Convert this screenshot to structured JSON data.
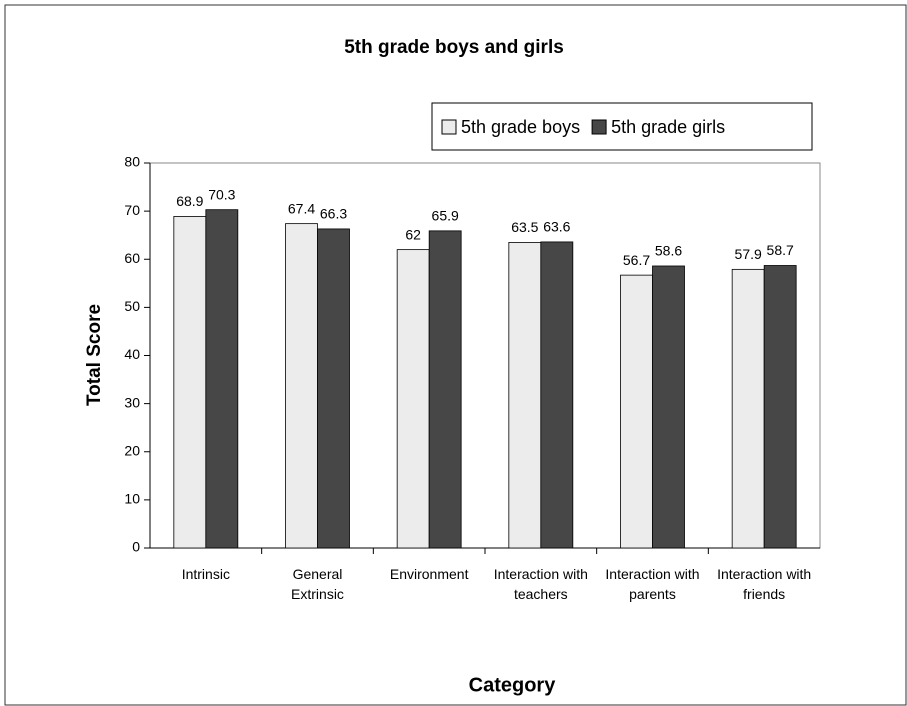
{
  "chart_data": {
    "type": "bar",
    "title": "5th grade boys and girls",
    "xlabel": "Category",
    "ylabel": "Total Score",
    "categories": [
      "Intrinsic",
      "General Extrinsic",
      "Environment",
      "Interaction with teachers",
      "Interaction with parents",
      "Interaction with friends"
    ],
    "series": [
      {
        "name": "5th grade boys",
        "color": "#ececec",
        "values": [
          68.9,
          67.4,
          62,
          63.5,
          56.7,
          57.9
        ]
      },
      {
        "name": "5th grade girls",
        "color": "#474747",
        "values": [
          70.3,
          66.3,
          65.9,
          63.6,
          58.6,
          58.7
        ]
      }
    ],
    "ylim": [
      0,
      80
    ],
    "yticks": [
      0,
      10,
      20,
      30,
      40,
      50,
      60,
      70,
      80
    ],
    "legend": "top-right"
  }
}
